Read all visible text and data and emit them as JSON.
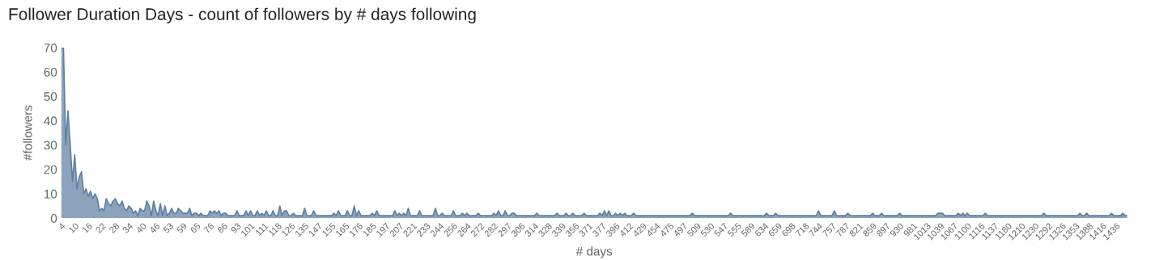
{
  "chart_data": {
    "type": "area",
    "title": "Follower Duration Days - count of followers by # days following",
    "xlabel": "# days",
    "ylabel": "#followers",
    "ylim": [
      0,
      70
    ],
    "yticks": [
      0,
      10,
      20,
      30,
      40,
      50,
      60,
      70
    ],
    "grid": false,
    "legend": false,
    "categories": [
      "4",
      null,
      null,
      null,
      null,
      null,
      "10",
      null,
      null,
      null,
      null,
      null,
      "16",
      null,
      null,
      null,
      null,
      null,
      "22",
      null,
      null,
      null,
      null,
      null,
      "28",
      null,
      null,
      null,
      null,
      null,
      "34",
      null,
      null,
      null,
      null,
      null,
      "40",
      null,
      null,
      null,
      null,
      null,
      "46",
      null,
      null,
      null,
      null,
      null,
      "53",
      null,
      null,
      null,
      null,
      null,
      "59",
      null,
      null,
      null,
      null,
      null,
      "65",
      null,
      null,
      null,
      null,
      null,
      "76",
      null,
      null,
      null,
      null,
      null,
      "86",
      null,
      null,
      null,
      null,
      null,
      "93",
      null,
      null,
      null,
      null,
      null,
      "101",
      null,
      null,
      null,
      null,
      null,
      "111",
      null,
      null,
      null,
      null,
      null,
      "118",
      null,
      null,
      null,
      null,
      null,
      "126",
      null,
      null,
      null,
      null,
      null,
      "135",
      null,
      null,
      null,
      null,
      null,
      "147",
      null,
      null,
      null,
      null,
      null,
      "155",
      null,
      null,
      null,
      null,
      null,
      "165",
      null,
      null,
      null,
      null,
      null,
      "176",
      null,
      null,
      null,
      null,
      null,
      "185",
      null,
      null,
      null,
      null,
      null,
      "197",
      null,
      null,
      null,
      null,
      null,
      "207",
      null,
      null,
      null,
      null,
      null,
      "221",
      null,
      null,
      null,
      null,
      null,
      "233",
      null,
      null,
      null,
      null,
      null,
      "244",
      null,
      null,
      null,
      null,
      null,
      "256",
      null,
      null,
      null,
      null,
      null,
      "264",
      null,
      null,
      null,
      null,
      null,
      "272",
      null,
      null,
      null,
      null,
      null,
      "282",
      null,
      null,
      null,
      null,
      null,
      "297",
      null,
      null,
      null,
      null,
      null,
      "306",
      null,
      null,
      null,
      null,
      null,
      "314",
      null,
      null,
      null,
      null,
      null,
      "328",
      null,
      null,
      null,
      null,
      null,
      "339",
      null,
      null,
      null,
      null,
      null,
      "356",
      null,
      null,
      null,
      null,
      null,
      "371",
      null,
      null,
      null,
      null,
      null,
      "377",
      null,
      null,
      null,
      null,
      null,
      "396",
      null,
      null,
      null,
      null,
      null,
      "412",
      null,
      null,
      null,
      null,
      null,
      "429",
      null,
      null,
      null,
      null,
      null,
      "454",
      null,
      null,
      null,
      null,
      null,
      "475",
      null,
      null,
      null,
      null,
      null,
      "497",
      null,
      null,
      null,
      null,
      null,
      "509",
      null,
      null,
      null,
      null,
      null,
      "530",
      null,
      null,
      null,
      null,
      null,
      "547",
      null,
      null,
      null,
      null,
      null,
      "555",
      null,
      null,
      null,
      null,
      null,
      "589",
      null,
      null,
      null,
      null,
      null,
      "634",
      null,
      null,
      null,
      null,
      null,
      "659",
      null,
      null,
      null,
      null,
      null,
      "698",
      null,
      null,
      null,
      null,
      null,
      "718",
      null,
      null,
      null,
      null,
      null,
      "744",
      null,
      null,
      null,
      null,
      null,
      "757",
      null,
      null,
      null,
      null,
      null,
      "787",
      null,
      null,
      null,
      null,
      null,
      "821",
      null,
      null,
      null,
      null,
      null,
      "859",
      null,
      null,
      null,
      null,
      null,
      "897",
      null,
      null,
      null,
      null,
      null,
      "930",
      null,
      null,
      null,
      null,
      null,
      "981",
      null,
      null,
      null,
      null,
      null,
      "1013",
      null,
      null,
      null,
      null,
      null,
      "1039",
      null,
      null,
      null,
      null,
      null,
      "1067",
      null,
      null,
      null,
      null,
      null,
      "1100",
      null,
      null,
      null,
      null,
      null,
      "1116",
      null,
      null,
      null,
      null,
      null,
      "1137",
      null,
      null,
      null,
      null,
      null,
      "1180",
      null,
      null,
      null,
      null,
      null,
      "1210",
      null,
      null,
      null,
      null,
      null,
      "1230",
      null,
      null,
      null,
      null,
      null,
      "1292",
      null,
      null,
      null,
      null,
      null,
      "1326",
      null,
      null,
      null,
      null,
      null,
      "1353",
      null,
      null,
      null,
      null,
      null,
      "1388",
      null,
      null,
      null,
      null,
      null,
      "1416",
      null,
      null,
      null,
      null,
      null,
      "1436",
      null,
      null,
      null,
      null,
      null
    ],
    "series": [
      {
        "color": "#5f7fa3",
        "values": [
          70,
          70,
          30,
          44,
          30,
          15,
          26,
          12,
          17,
          19,
          10,
          12,
          9,
          11,
          8,
          10,
          8,
          3,
          4,
          3,
          8,
          6,
          5,
          7,
          8,
          6,
          5,
          7,
          4,
          3,
          5,
          4,
          2,
          3,
          1,
          4,
          3,
          3,
          7,
          5,
          1,
          7,
          3,
          1,
          6,
          1,
          5,
          1,
          2,
          4,
          2,
          2,
          4,
          3,
          2,
          2,
          2,
          4,
          1,
          2,
          2,
          1,
          2,
          1,
          1,
          1,
          3,
          2,
          3,
          2,
          3,
          1,
          2,
          2,
          1,
          1,
          1,
          1,
          3,
          1,
          1,
          1,
          3,
          1,
          3,
          1,
          1,
          3,
          1,
          2,
          1,
          3,
          1,
          1,
          3,
          1,
          1,
          5,
          1,
          3,
          3,
          1,
          1,
          2,
          1,
          1,
          1,
          1,
          4,
          1,
          1,
          1,
          3,
          1,
          1,
          1,
          1,
          1,
          1,
          1,
          1,
          2,
          1,
          3,
          1,
          1,
          1,
          3,
          1,
          1,
          5,
          1,
          3,
          1,
          1,
          1,
          1,
          1,
          2,
          1,
          3,
          1,
          1,
          1,
          1,
          1,
          1,
          1,
          3,
          1,
          2,
          1,
          2,
          1,
          4,
          1,
          1,
          1,
          1,
          3,
          1,
          1,
          1,
          1,
          1,
          1,
          4,
          1,
          1,
          2,
          1,
          1,
          1,
          1,
          3,
          1,
          1,
          1,
          2,
          1,
          2,
          1,
          1,
          1,
          1,
          2,
          1,
          1,
          1,
          1,
          1,
          1,
          2,
          1,
          3,
          1,
          1,
          3,
          1,
          1,
          2,
          2,
          1,
          1,
          1,
          1,
          1,
          1,
          1,
          1,
          1,
          2,
          1,
          1,
          1,
          1,
          1,
          1,
          1,
          1,
          2,
          1,
          1,
          1,
          2,
          1,
          1,
          2,
          1,
          1,
          1,
          1,
          2,
          1,
          1,
          1,
          1,
          1,
          1,
          2,
          1,
          3,
          1,
          3,
          1,
          1,
          2,
          1,
          2,
          1,
          2,
          1,
          1,
          1,
          2,
          1,
          1,
          1,
          1,
          1,
          1,
          1,
          1,
          1,
          1,
          1,
          1,
          1,
          1,
          1,
          1,
          1,
          1,
          1,
          1,
          1,
          1,
          1,
          1,
          1,
          2,
          1,
          1,
          1,
          1,
          1,
          1,
          1,
          1,
          1,
          1,
          1,
          1,
          1,
          1,
          1,
          1,
          2,
          1,
          1,
          1,
          1,
          1,
          1,
          1,
          1,
          1,
          1,
          1,
          1,
          1,
          1,
          1,
          2,
          1,
          1,
          1,
          2,
          1,
          1,
          1,
          1,
          1,
          1,
          1,
          1,
          1,
          1,
          1,
          1,
          1,
          1,
          1,
          1,
          1,
          1,
          3,
          1,
          1,
          1,
          1,
          1,
          1,
          3,
          1,
          1,
          1,
          1,
          1,
          2,
          1,
          1,
          1,
          1,
          1,
          1,
          1,
          1,
          1,
          1,
          2,
          1,
          1,
          1,
          2,
          1,
          1,
          1,
          1,
          1,
          1,
          1,
          2,
          1,
          1,
          1,
          1,
          1,
          1,
          1,
          1,
          1,
          1,
          1,
          1,
          1,
          1,
          1,
          1,
          2,
          2,
          2,
          1,
          1,
          1,
          1,
          1,
          1,
          2,
          1,
          2,
          1,
          2,
          1,
          1,
          1,
          1,
          1,
          1,
          1,
          2,
          1,
          1,
          1,
          1,
          1,
          1,
          1,
          1,
          1,
          1,
          1,
          1,
          1,
          1,
          1,
          1,
          1,
          1,
          1,
          1,
          1,
          1,
          1,
          1,
          1,
          2,
          1,
          1,
          1,
          1,
          1,
          1,
          1,
          1,
          1,
          1,
          1,
          1,
          1,
          1,
          1,
          2,
          1,
          1,
          2,
          1,
          1,
          1,
          1,
          1,
          1,
          1,
          1,
          1,
          1,
          2,
          1,
          1,
          1,
          1,
          2,
          1,
          1
        ]
      }
    ]
  }
}
